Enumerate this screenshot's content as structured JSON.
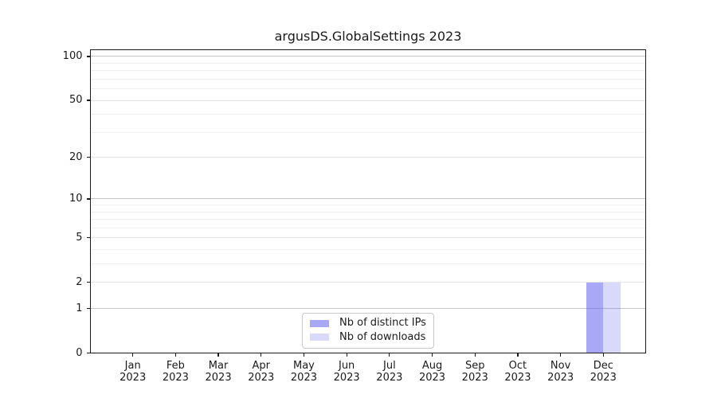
{
  "chart_data": {
    "type": "bar",
    "title": "argusDS.GlobalSettings 2023",
    "x": {
      "categories": [
        "Jan",
        "Feb",
        "Mar",
        "Apr",
        "May",
        "Jun",
        "Jul",
        "Aug",
        "Sep",
        "Oct",
        "Nov",
        "Dec"
      ],
      "year_label": "2023"
    },
    "series": [
      {
        "name": "Nb of distinct IPs",
        "color": "rgba(97,97,241,0.55)",
        "values": [
          0,
          0,
          0,
          0,
          0,
          0,
          0,
          0,
          0,
          0,
          0,
          2
        ]
      },
      {
        "name": "Nb of downloads",
        "color": "rgba(97,97,241,0.24)",
        "values": [
          0,
          0,
          0,
          0,
          0,
          0,
          0,
          0,
          0,
          0,
          0,
          2
        ]
      }
    ],
    "y_axis": {
      "scale": "log1p",
      "ylim": [
        0,
        112.5
      ],
      "labeled_ticks": [
        0,
        1,
        2,
        5,
        10,
        20,
        50,
        100
      ],
      "power_gridlines": [
        1,
        10,
        100
      ],
      "mid_gridlines": [
        2,
        5,
        20,
        50
      ],
      "minor_gridlines": [
        3,
        4,
        6,
        7,
        8,
        9,
        30,
        40,
        60,
        70,
        80,
        90
      ]
    },
    "legend": {
      "position": "lower center",
      "entries": [
        "Nb of distinct IPs",
        "Nb of downloads"
      ]
    },
    "grid": true,
    "colors": {
      "grid_power": "#c6c6c6",
      "grid_mid": "#e4e4e4",
      "grid_minor": "#f0f0f0",
      "spine": "#1a1a1a",
      "text": "#1a1a1a",
      "legend_border": "#c9c9c9"
    }
  }
}
